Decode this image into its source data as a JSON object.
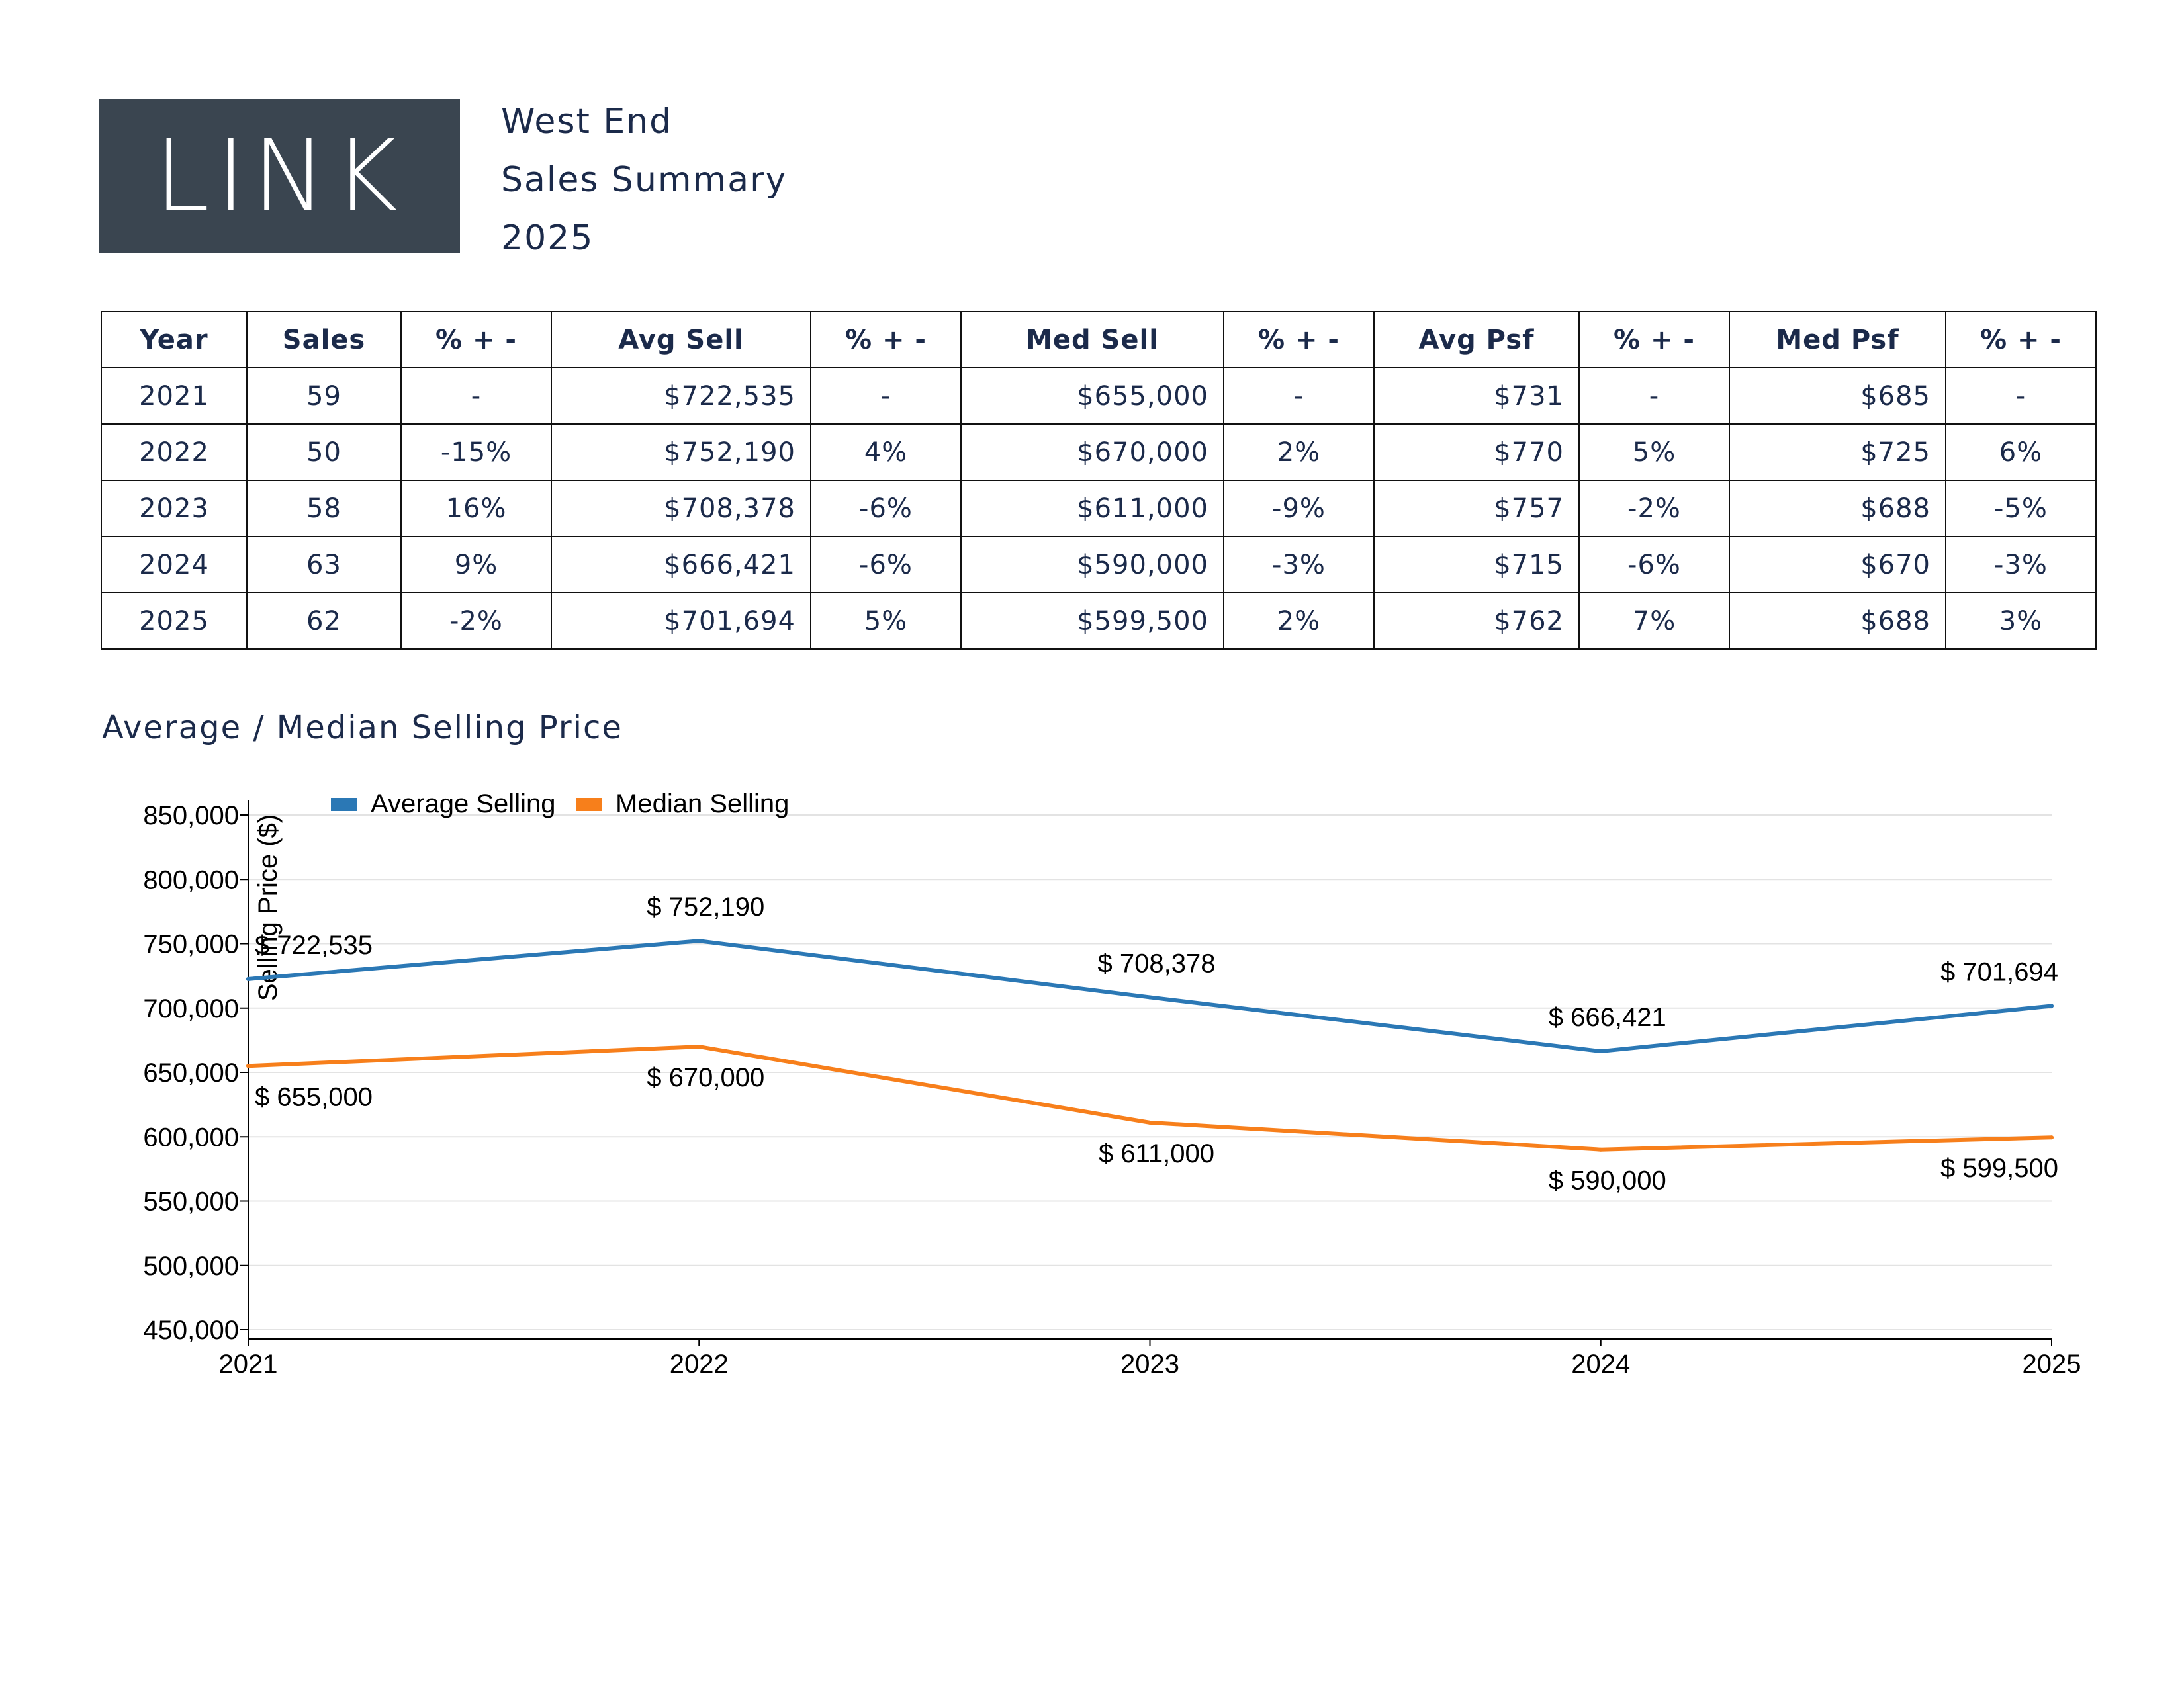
{
  "logo": {
    "text": "LINK"
  },
  "header": {
    "line1": "West End",
    "line2": "Sales Summary",
    "line3": "2025"
  },
  "table": {
    "columns": [
      "Year",
      "Sales",
      "% + -",
      "Avg Sell",
      "% + -",
      "Med Sell",
      "% + -",
      "Avg Psf",
      "% + -",
      "Med Psf",
      "% + -"
    ],
    "rows": [
      [
        "2021",
        "59",
        "-",
        "$722,535",
        "-",
        "$655,000",
        "-",
        "$731",
        "-",
        "$685",
        "-"
      ],
      [
        "2022",
        "50",
        "-15%",
        "$752,190",
        "4%",
        "$670,000",
        "2%",
        "$770",
        "5%",
        "$725",
        "6%"
      ],
      [
        "2023",
        "58",
        "16%",
        "$708,378",
        "-6%",
        "$611,000",
        "-9%",
        "$757",
        "-2%",
        "$688",
        "-5%"
      ],
      [
        "2024",
        "63",
        "9%",
        "$666,421",
        "-6%",
        "$590,000",
        "-3%",
        "$715",
        "-6%",
        "$670",
        "-3%"
      ],
      [
        "2025",
        "62",
        "-2%",
        "$701,694",
        "5%",
        "$599,500",
        "2%",
        "$762",
        "7%",
        "$688",
        "3%"
      ]
    ]
  },
  "chart_title": "Average / Median Selling Price",
  "chart_data": {
    "type": "line",
    "title": "Average / Median Selling Price",
    "xlabel": "",
    "ylabel": "Selling Price ($)",
    "x": [
      "2021",
      "2022",
      "2023",
      "2024",
      "2025"
    ],
    "ylim": [
      450000,
      850000
    ],
    "yticks": [
      450000,
      500000,
      550000,
      600000,
      650000,
      700000,
      750000,
      800000,
      850000
    ],
    "ytick_labels": [
      "450,000",
      "500,000",
      "550,000",
      "600,000",
      "650,000",
      "700,000",
      "750,000",
      "800,000",
      "850,000"
    ],
    "grid": true,
    "legend_position": "top-left",
    "series": [
      {
        "name": "Average Selling",
        "color": "#2b78b5",
        "values": [
          722535,
          752190,
          708378,
          666421,
          701694
        ],
        "labels": [
          "$ 722,535",
          "$ 752,190",
          "$ 708,378",
          "$ 666,421",
          "$ 701,694"
        ]
      },
      {
        "name": "Median Selling",
        "color": "#f77f1b",
        "values": [
          655000,
          670000,
          611000,
          590000,
          599500
        ],
        "labels": [
          "$ 655,000",
          "$ 670,000",
          "$ 611,000",
          "$ 590,000",
          "$ 599,500"
        ]
      }
    ]
  }
}
